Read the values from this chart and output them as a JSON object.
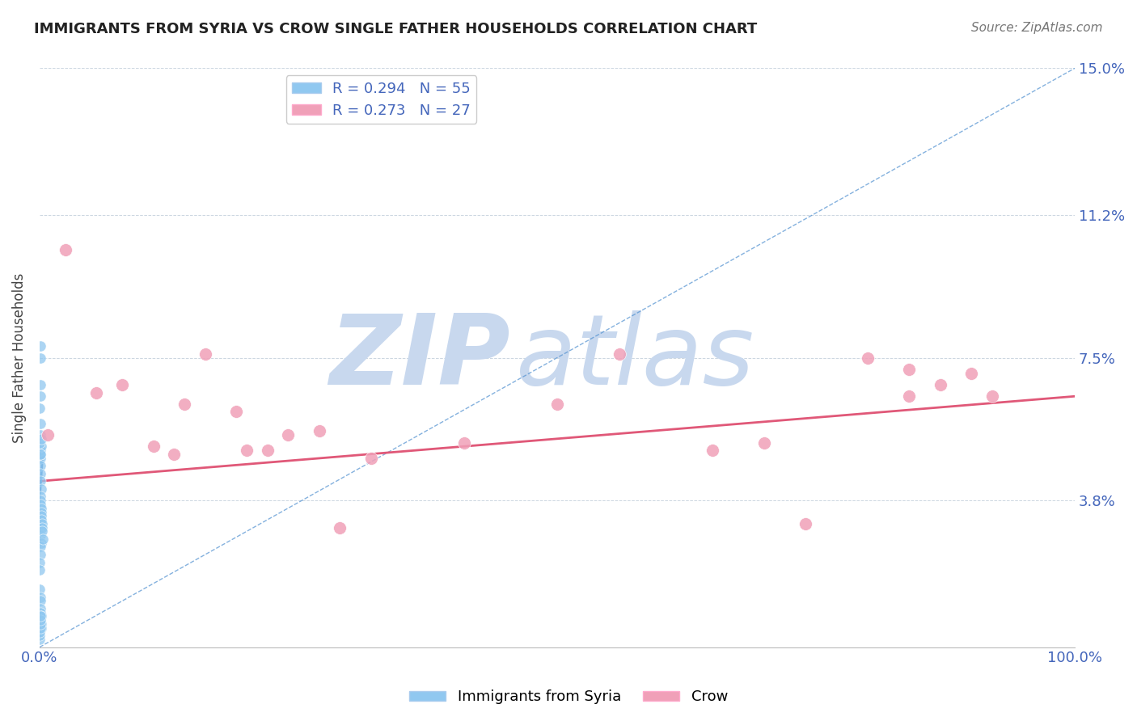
{
  "title": "IMMIGRANTS FROM SYRIA VS CROW SINGLE FATHER HOUSEHOLDS CORRELATION CHART",
  "source": "Source: ZipAtlas.com",
  "ylabel": "Single Father Households",
  "legend_label1": "Immigrants from Syria",
  "legend_label2": "Crow",
  "r1": 0.294,
  "n1": 55,
  "r2": 0.273,
  "n2": 27,
  "xlim": [
    0,
    100
  ],
  "ylim": [
    0,
    15
  ],
  "yticks": [
    0,
    3.8,
    7.5,
    11.2,
    15.0
  ],
  "ytick_labels": [
    "",
    "3.8%",
    "7.5%",
    "11.2%",
    "15.0%"
  ],
  "color_blue": "#90C8F0",
  "color_pink": "#F0A0B8",
  "color_trend_pink": "#E05878",
  "color_trend_blue": "#5090D0",
  "color_title": "#222222",
  "color_tick_label": "#4466BB",
  "background_color": "#FFFFFF",
  "watermark_zip": "ZIP",
  "watermark_atlas": "atlas",
  "watermark_color": "#C8D8EE",
  "syria_x": [
    0.05,
    0.08,
    0.1,
    0.12,
    0.05,
    0.03,
    0.07,
    0.09,
    0.11,
    0.06,
    0.04,
    0.08,
    0.13,
    0.1,
    0.07,
    0.05,
    0.09,
    0.12,
    0.06,
    0.04,
    0.08,
    0.11,
    0.07,
    0.05,
    0.1,
    0.14,
    0.09,
    0.06,
    0.04,
    0.03,
    0.02,
    0.05,
    0.07,
    0.09,
    0.11,
    0.13,
    0.15,
    0.17,
    0.08,
    0.1,
    0.12,
    0.14,
    0.16,
    0.18,
    0.2,
    0.22,
    0.25,
    0.28,
    0.02,
    0.03,
    0.04,
    0.06,
    0.07,
    0.08,
    0.1
  ],
  "syria_y": [
    4.9,
    5.1,
    5.0,
    5.2,
    5.5,
    5.3,
    7.5,
    7.8,
    6.8,
    6.5,
    6.2,
    5.8,
    5.4,
    5.0,
    4.7,
    4.5,
    4.3,
    4.1,
    3.9,
    3.7,
    3.6,
    3.5,
    3.3,
    3.1,
    2.9,
    2.7,
    2.6,
    2.4,
    2.2,
    2.0,
    1.5,
    1.3,
    1.2,
    1.0,
    0.9,
    0.8,
    0.6,
    0.5,
    3.8,
    3.7,
    3.6,
    3.5,
    3.4,
    3.3,
    3.2,
    3.1,
    3.0,
    2.8,
    0.2,
    0.3,
    0.4,
    0.5,
    0.6,
    0.7,
    0.8
  ],
  "crow_x": [
    0.8,
    2.5,
    5.5,
    8.0,
    11.0,
    14.0,
    16.0,
    19.0,
    22.0,
    27.0,
    32.0,
    20.0,
    50.0,
    65.0,
    74.0,
    80.0,
    84.0,
    87.0,
    90.0,
    92.0,
    13.0,
    24.0,
    29.0,
    41.0,
    56.0,
    70.0,
    84.0
  ],
  "crow_y": [
    5.5,
    10.3,
    6.6,
    6.8,
    5.2,
    6.3,
    7.6,
    6.1,
    5.1,
    5.6,
    4.9,
    5.1,
    6.3,
    5.1,
    3.2,
    7.5,
    7.2,
    6.8,
    7.1,
    6.5,
    5.0,
    5.5,
    3.1,
    5.3,
    7.6,
    5.3,
    6.5
  ],
  "trend_pink_x0": 0,
  "trend_pink_y0": 4.3,
  "trend_pink_x1": 100,
  "trend_pink_y1": 6.5,
  "trend_blue_x0": 0,
  "trend_blue_y0": 3.8,
  "trend_blue_x1": 0.3,
  "trend_blue_y1": 5.0,
  "diag_x0": 0,
  "diag_y0": 0,
  "diag_x1": 100,
  "diag_y1": 15
}
